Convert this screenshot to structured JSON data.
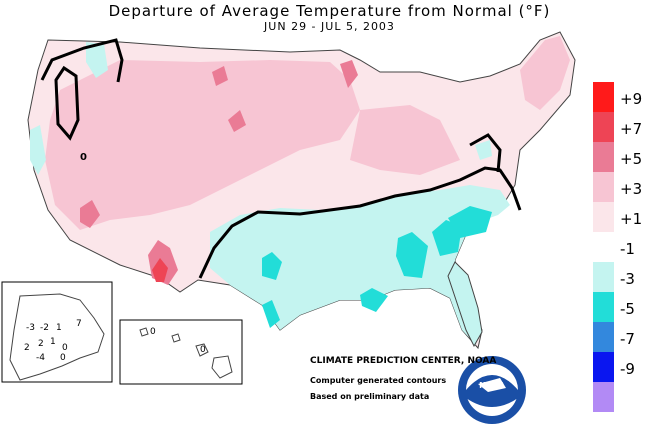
{
  "map": {
    "title": "Departure of Average Temperature from Normal (°F)",
    "date_range": "JUN 29 - JUL 5, 2003",
    "credit": "CLIMATE PREDICTION CENTER, NOAA",
    "note1": "Computer generated contours",
    "note2": "Based on preliminary data",
    "logo_text": "NOAA",
    "alaska_labels": [
      "-3",
      "-2",
      "1",
      "7",
      "0",
      "2",
      "2",
      "1",
      "-4",
      "0"
    ],
    "hawaii_labels": [
      "0",
      "0"
    ],
    "center_label": "0"
  },
  "legend": [
    {
      "label": "+9",
      "color": "#ff1a1a"
    },
    {
      "label": "+7",
      "color": "#ee4455"
    },
    {
      "label": "+5",
      "color": "#ea7b95"
    },
    {
      "label": "+3",
      "color": "#f7c5d3"
    },
    {
      "label": "+1",
      "color": "#fbe6ea"
    },
    {
      "label": "-1",
      "color": "#ffffff"
    },
    {
      "label": "-3",
      "color": "#c4f4f0"
    },
    {
      "label": "-5",
      "color": "#22ddd8"
    },
    {
      "label": "-7",
      "color": "#3388dd"
    },
    {
      "label": "-9",
      "color": "#0a16f0"
    },
    {
      "label": "",
      "color": "#b28af5"
    }
  ],
  "colors": {
    "warm1": "#fbe6ea",
    "warm3": "#f7c5d3",
    "warm5": "#ea7b95",
    "warm7": "#ee4455",
    "cool1": "#c4f4f0",
    "cool3": "#22ddd8"
  }
}
